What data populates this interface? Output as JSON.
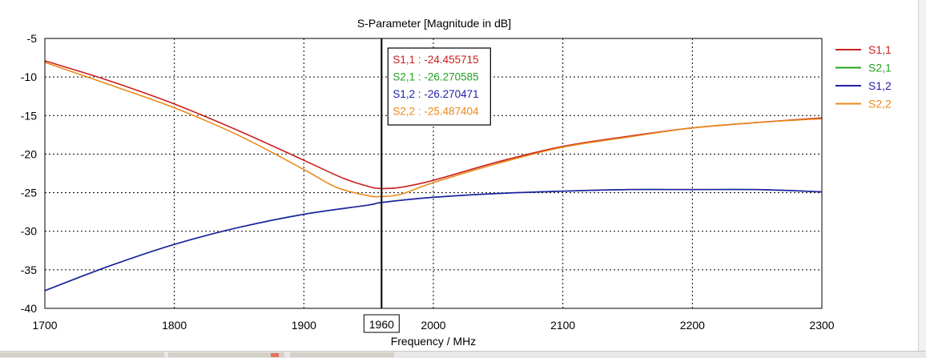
{
  "chart_data": {
    "type": "line",
    "title": "S-Parameter [Magnitude in dB]",
    "xlabel": "Frequency / MHz",
    "ylabel": "",
    "xlim": [
      1700,
      2300
    ],
    "ylim": [
      -40,
      -5
    ],
    "xticks": [
      1700,
      1800,
      1900,
      2000,
      2100,
      2200,
      2300
    ],
    "xtick_labels": [
      "1700",
      "1800",
      "1900",
      "2000",
      "2100",
      "2200",
      "2300"
    ],
    "yticks": [
      -5,
      -10,
      -15,
      -20,
      -25,
      -30,
      -35,
      -40
    ],
    "ytick_labels": [
      "-5",
      "-10",
      "-15",
      "-20",
      "-25",
      "-30",
      "-35",
      "-40"
    ],
    "grid": true,
    "legend_position": "right",
    "series": [
      {
        "name": "S1,1",
        "color": "#cc1f1f",
        "x": [
          1700,
          1750,
          1800,
          1850,
          1900,
          1930,
          1950,
          1960,
          1975,
          2000,
          2050,
          2100,
          2150,
          2200,
          2250,
          2300
        ],
        "y": [
          -7.9,
          -10.5,
          -13.5,
          -17.0,
          -20.8,
          -23.1,
          -24.2,
          -24.46,
          -24.3,
          -23.4,
          -21.0,
          -19.0,
          -17.7,
          -16.6,
          -15.9,
          -15.3
        ]
      },
      {
        "name": "S2,1",
        "color": "#22a322",
        "x": [
          1700,
          1750,
          1800,
          1850,
          1900,
          1950,
          1960,
          2000,
          2050,
          2100,
          2150,
          2200,
          2250,
          2300
        ],
        "y": [
          -37.7,
          -34.5,
          -31.7,
          -29.5,
          -27.8,
          -26.6,
          -26.27,
          -25.6,
          -25.1,
          -24.8,
          -24.6,
          -24.6,
          -24.6,
          -24.9
        ]
      },
      {
        "name": "S1,2",
        "color": "#1f1fa8",
        "x": [
          1700,
          1750,
          1800,
          1850,
          1900,
          1950,
          1960,
          2000,
          2050,
          2100,
          2150,
          2200,
          2250,
          2300
        ],
        "y": [
          -37.7,
          -34.5,
          -31.7,
          -29.5,
          -27.8,
          -26.6,
          -26.27,
          -25.6,
          -25.1,
          -24.8,
          -24.6,
          -24.6,
          -24.6,
          -24.9
        ]
      },
      {
        "name": "S2,2",
        "color": "#e88a1a",
        "x": [
          1700,
          1750,
          1800,
          1850,
          1900,
          1925,
          1950,
          1960,
          1975,
          2000,
          2050,
          2100,
          2150,
          2200,
          2250,
          2300
        ],
        "y": [
          -8.1,
          -11.0,
          -14.0,
          -17.6,
          -22.0,
          -24.3,
          -25.4,
          -25.49,
          -25.2,
          -23.7,
          -21.2,
          -19.1,
          -17.8,
          -16.6,
          -15.9,
          -15.4
        ]
      }
    ],
    "marker": {
      "x": 1960,
      "label": "1960",
      "readouts": [
        {
          "name": "S1,1",
          "value": "-24.455715",
          "color": "#cc1f1f"
        },
        {
          "name": "S2,1",
          "value": "-26.270585",
          "color": "#22a322"
        },
        {
          "name": "S1,2",
          "value": "-26.270471",
          "color": "#1f1fa8"
        },
        {
          "name": "S2,2",
          "value": "-25.487404",
          "color": "#e88a1a"
        }
      ]
    }
  }
}
